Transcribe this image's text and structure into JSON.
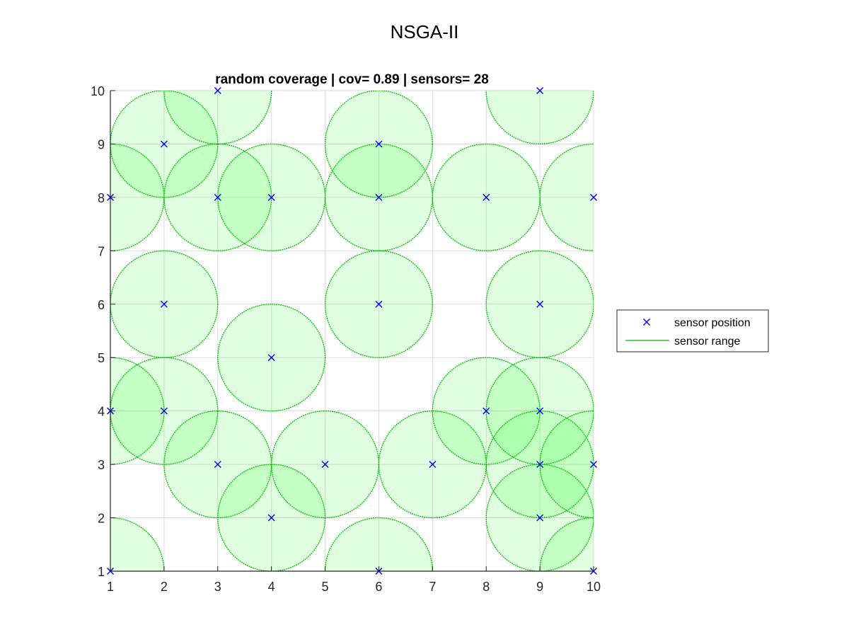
{
  "figure_title": "NSGA-II",
  "chart_data": {
    "type": "scatter",
    "title": "random coverage | cov= 0.89 | sensors= 28",
    "xlabel": "",
    "ylabel": "",
    "xlim": [
      1,
      10
    ],
    "ylim": [
      1,
      10
    ],
    "xticks": [
      "1",
      "2",
      "3",
      "4",
      "5",
      "6",
      "7",
      "8",
      "9",
      "10"
    ],
    "yticks": [
      "1",
      "2",
      "3",
      "4",
      "5",
      "6",
      "7",
      "8",
      "9",
      "10"
    ],
    "grid": true,
    "legend_position": "outside-right",
    "sensor_radius": 1,
    "series": [
      {
        "name": "sensor position",
        "marker": "x",
        "color": "#0000ff",
        "points": [
          [
            1,
            1
          ],
          [
            1,
            4
          ],
          [
            1,
            8
          ],
          [
            2,
            4
          ],
          [
            2,
            6
          ],
          [
            2,
            9
          ],
          [
            3,
            3
          ],
          [
            3,
            8
          ],
          [
            3,
            10
          ],
          [
            4,
            2
          ],
          [
            4,
            5
          ],
          [
            4,
            8
          ],
          [
            5,
            3
          ],
          [
            6,
            1
          ],
          [
            6,
            6
          ],
          [
            6,
            8
          ],
          [
            6,
            9
          ],
          [
            7,
            3
          ],
          [
            8,
            4
          ],
          [
            8,
            8
          ],
          [
            9,
            2
          ],
          [
            9,
            3
          ],
          [
            9,
            4
          ],
          [
            9,
            6
          ],
          [
            9,
            10
          ],
          [
            10,
            1
          ],
          [
            10,
            3
          ],
          [
            10,
            8
          ]
        ]
      },
      {
        "name": "sensor range",
        "marker": "line",
        "color": "#00bb00",
        "fill": "#00ff00",
        "fill_opacity": 0.12
      }
    ]
  }
}
